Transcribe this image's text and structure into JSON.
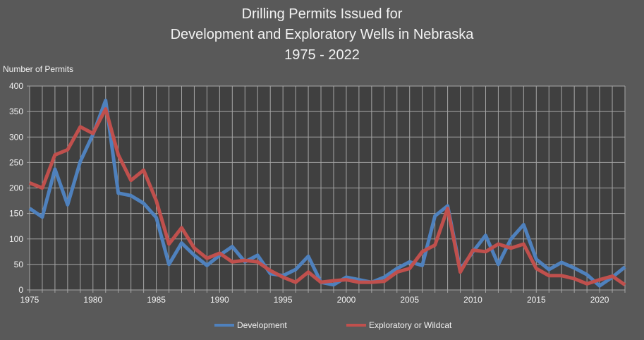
{
  "chart_data": {
    "type": "line",
    "title": [
      "Drilling Permits Issued for",
      "Development and Exploratory Wells in Nebraska",
      "1975 - 2022"
    ],
    "ylabel": "Number of Permits",
    "xlabel": "",
    "xlim": [
      1975,
      2022
    ],
    "ylim": [
      0,
      400
    ],
    "yticks": [
      0,
      50,
      100,
      150,
      200,
      250,
      300,
      350,
      400
    ],
    "xticks": [
      1975,
      1980,
      1985,
      1990,
      1995,
      2000,
      2005,
      2010,
      2015,
      2020
    ],
    "grid": true,
    "legend_position": "bottom",
    "x": [
      1975,
      1976,
      1977,
      1978,
      1979,
      1980,
      1981,
      1982,
      1983,
      1984,
      1985,
      1986,
      1987,
      1988,
      1989,
      1990,
      1991,
      1992,
      1993,
      1994,
      1995,
      1996,
      1997,
      1998,
      1999,
      2000,
      2001,
      2002,
      2003,
      2004,
      2005,
      2006,
      2007,
      2008,
      2009,
      2010,
      2011,
      2012,
      2013,
      2014,
      2015,
      2016,
      2017,
      2018,
      2019,
      2020,
      2021,
      2022
    ],
    "series": [
      {
        "name": "Development",
        "color": "#4f81bd",
        "values": [
          160,
          143,
          237,
          167,
          252,
          305,
          372,
          190,
          185,
          170,
          142,
          50,
          92,
          68,
          48,
          68,
          85,
          55,
          68,
          32,
          28,
          40,
          66,
          15,
          10,
          25,
          20,
          15,
          25,
          42,
          55,
          48,
          145,
          165,
          40,
          75,
          107,
          50,
          100,
          128,
          60,
          40,
          54,
          43,
          30,
          8,
          25,
          45
        ]
      },
      {
        "name": "Exploratory or Wildcat",
        "color": "#c0504d",
        "values": [
          210,
          200,
          265,
          275,
          320,
          307,
          355,
          265,
          215,
          235,
          175,
          90,
          122,
          82,
          62,
          72,
          55,
          58,
          55,
          38,
          25,
          15,
          35,
          15,
          18,
          20,
          15,
          15,
          17,
          35,
          42,
          75,
          88,
          160,
          35,
          78,
          75,
          90,
          82,
          90,
          42,
          28,
          28,
          22,
          12,
          20,
          27,
          10
        ]
      }
    ]
  },
  "colors": {
    "background": "#595959",
    "plot_background": "#404040",
    "grid": "#a6a6a6"
  }
}
